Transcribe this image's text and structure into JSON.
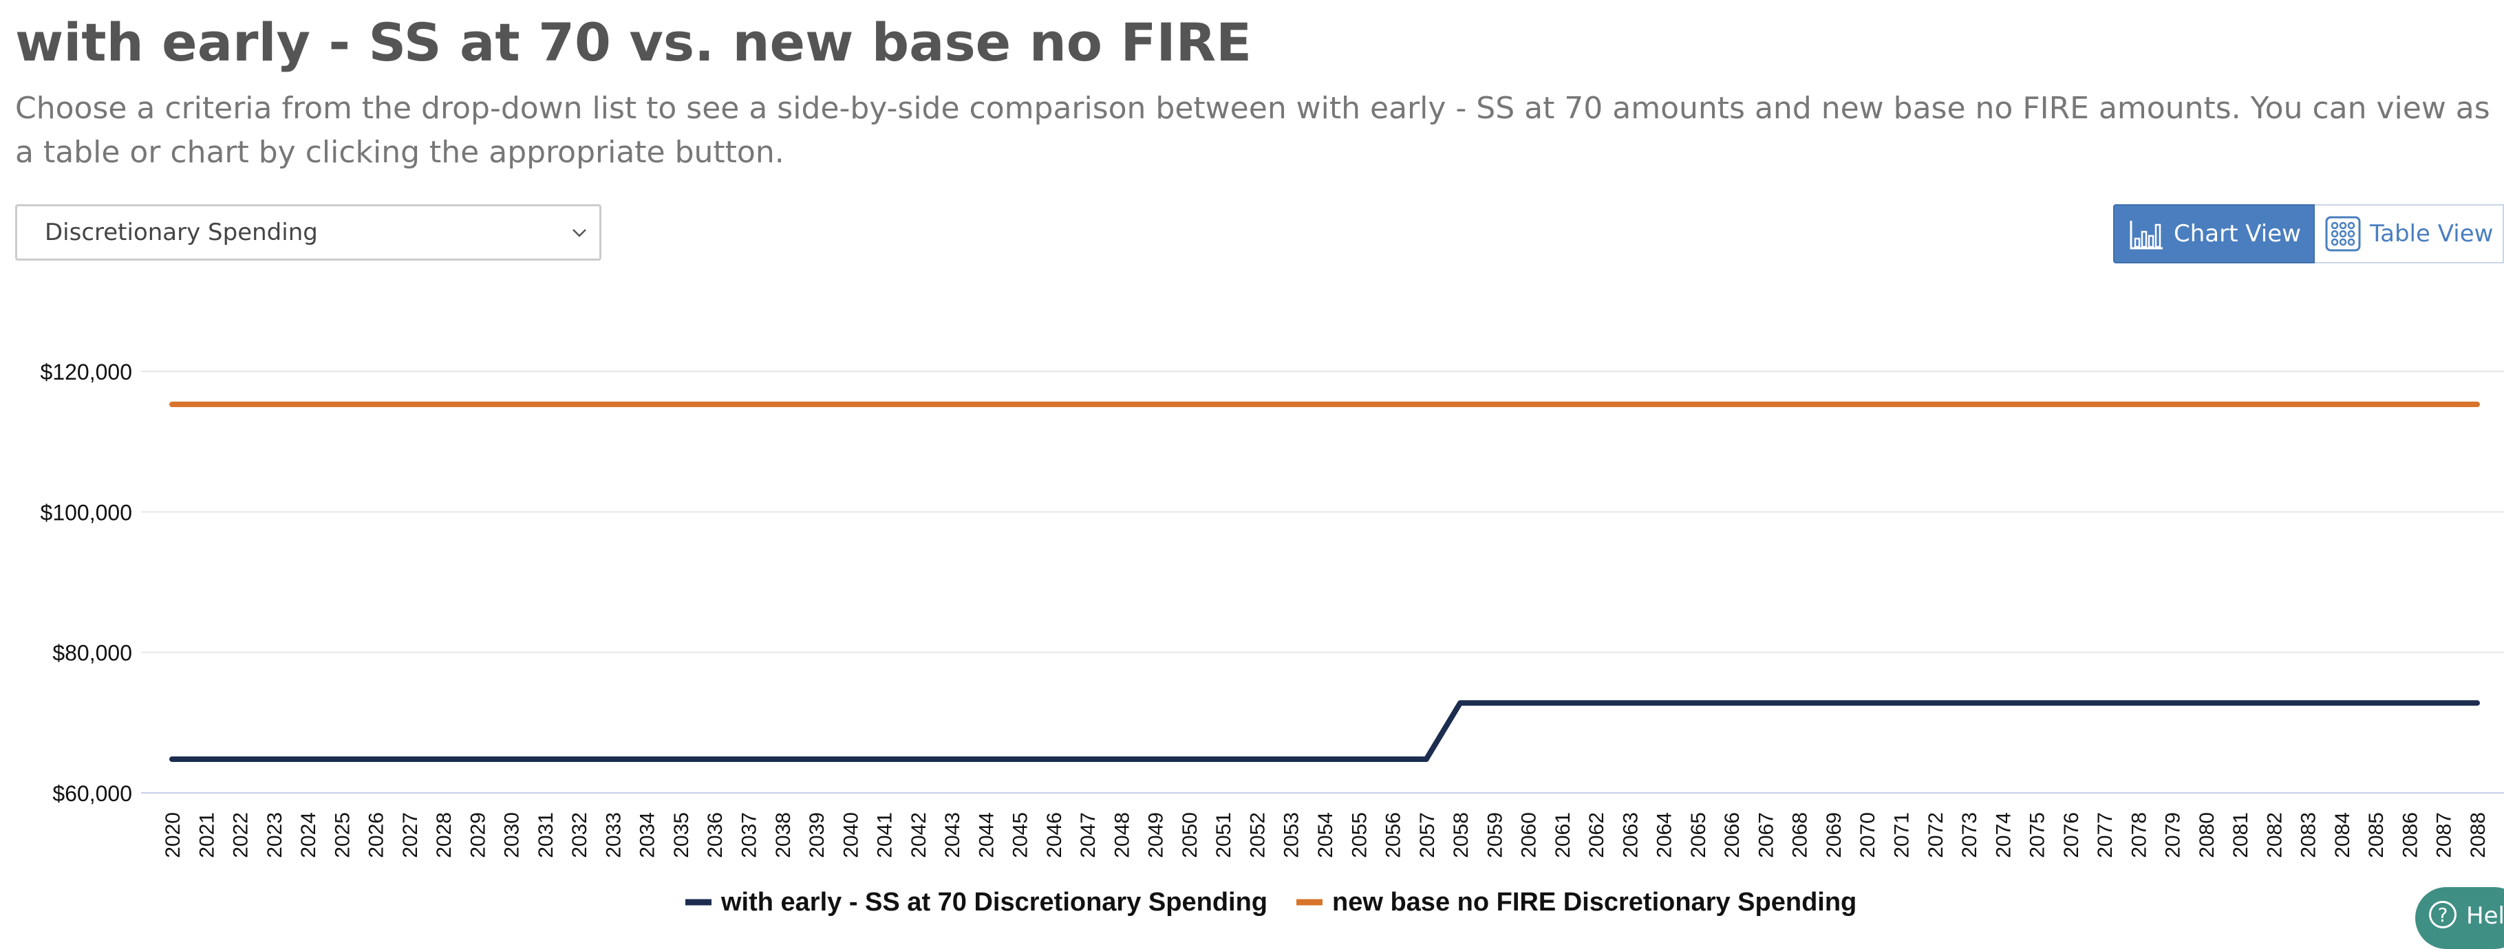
{
  "header": {
    "title": "with early - SS at 70 vs. new base no FIRE",
    "description": "Choose a criteria from the drop-down list to see a side-by-side comparison between with early - SS at 70 amounts and new base no FIRE amounts. You can view as a table or chart by clicking the appropriate button."
  },
  "criteria_select": {
    "selected": "Discretionary Spending",
    "icon": "chevron-down-icon"
  },
  "view_toggle": {
    "chart_label": "Chart View",
    "chart_icon": "bar-chart-icon",
    "table_label": "Table View",
    "table_icon": "grid-icon",
    "active": "chart"
  },
  "help": {
    "label": "Help",
    "icon": "question-circle-icon"
  },
  "colors": {
    "accent": "#4a7ebf",
    "series1": "#1c2d4f",
    "series2": "#d8742b",
    "help": "#3f8f84"
  },
  "chart_data": {
    "type": "line",
    "title": "",
    "xlabel": "",
    "ylabel": "",
    "categories": [
      2020,
      2021,
      2022,
      2023,
      2024,
      2025,
      2026,
      2027,
      2028,
      2029,
      2030,
      2031,
      2032,
      2033,
      2034,
      2035,
      2036,
      2037,
      2038,
      2039,
      2040,
      2041,
      2042,
      2043,
      2044,
      2045,
      2046,
      2047,
      2048,
      2049,
      2050,
      2051,
      2052,
      2053,
      2054,
      2055,
      2056,
      2057,
      2058,
      2059,
      2060,
      2061,
      2062,
      2063,
      2064,
      2065,
      2066,
      2067,
      2068,
      2069,
      2070,
      2071,
      2072,
      2073,
      2074,
      2075,
      2076,
      2077,
      2078,
      2079,
      2080,
      2081,
      2082,
      2083,
      2084,
      2085,
      2086,
      2087,
      2088
    ],
    "ylim": [
      60000,
      120000
    ],
    "yticks": [
      "$60,000",
      "$80,000",
      "$100,000",
      "$120,000"
    ],
    "ytick_values": [
      60000,
      80000,
      100000,
      120000
    ],
    "grid": true,
    "legend": "bottom-center",
    "series": [
      {
        "name": "with early - SS at 70 Discretionary Spending",
        "color": "#1c2d4f",
        "values": [
          64800,
          64800,
          64800,
          64800,
          64800,
          64800,
          64800,
          64800,
          64800,
          64800,
          64800,
          64800,
          64800,
          64800,
          64800,
          64800,
          64800,
          64800,
          64800,
          64800,
          64800,
          64800,
          64800,
          64800,
          64800,
          64800,
          64800,
          64800,
          64800,
          64800,
          64800,
          64800,
          64800,
          64800,
          64800,
          64800,
          64800,
          64800,
          72800,
          72800,
          72800,
          72800,
          72800,
          72800,
          72800,
          72800,
          72800,
          72800,
          72800,
          72800,
          72800,
          72800,
          72800,
          72800,
          72800,
          72800,
          72800,
          72800,
          72800,
          72800,
          72800,
          72800,
          72800,
          72800,
          72800,
          72800,
          72800,
          72800,
          72800
        ]
      },
      {
        "name": "new base no FIRE Discretionary Spending",
        "color": "#d8742b",
        "values": [
          115300,
          115300,
          115300,
          115300,
          115300,
          115300,
          115300,
          115300,
          115300,
          115300,
          115300,
          115300,
          115300,
          115300,
          115300,
          115300,
          115300,
          115300,
          115300,
          115300,
          115300,
          115300,
          115300,
          115300,
          115300,
          115300,
          115300,
          115300,
          115300,
          115300,
          115300,
          115300,
          115300,
          115300,
          115300,
          115300,
          115300,
          115300,
          115300,
          115300,
          115300,
          115300,
          115300,
          115300,
          115300,
          115300,
          115300,
          115300,
          115300,
          115300,
          115300,
          115300,
          115300,
          115300,
          115300,
          115300,
          115300,
          115300,
          115300,
          115300,
          115300,
          115300,
          115300,
          115300,
          115300,
          115300,
          115300,
          115300,
          115300
        ]
      }
    ]
  }
}
